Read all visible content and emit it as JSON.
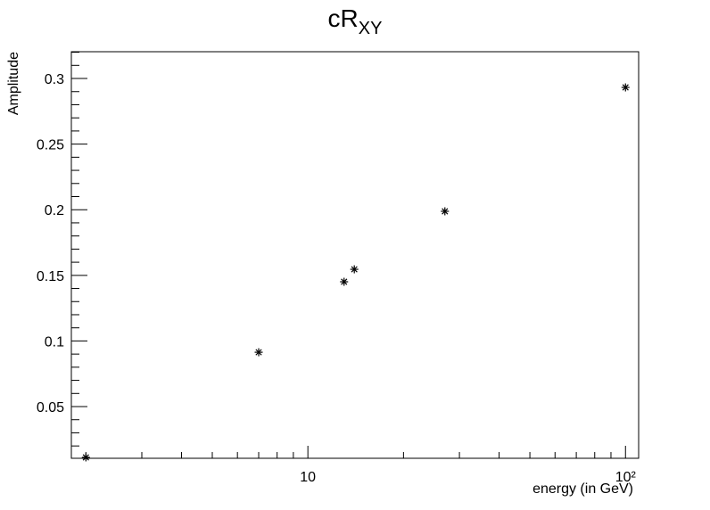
{
  "chart_data": {
    "type": "scatter",
    "title": "cR",
    "title_subscript": "XY",
    "x_label": "energy (in GeV)",
    "y_label": "Amplitude",
    "x": [
      2,
      7,
      13,
      14,
      27,
      100
    ],
    "values": [
      0.0113,
      0.0914,
      0.1451,
      0.1546,
      0.1988,
      0.2932
    ],
    "color": "#000000",
    "marker": "asterisk",
    "xscale": "log",
    "xlim": [
      1.8,
      110
    ],
    "ylim": [
      0.0106,
      0.3204
    ],
    "xticks": [
      10,
      {
        "value": 100,
        "label": "10²"
      }
    ],
    "xminor_ticks": [
      2,
      3,
      4,
      5,
      6,
      7,
      8,
      9,
      20,
      30,
      40,
      50,
      60,
      70,
      80,
      90
    ],
    "yticks": [
      0.05,
      0.1,
      0.15,
      0.2,
      0.25,
      0.3
    ],
    "yminor_ticks": [
      0.02,
      0.03,
      0.04,
      0.06,
      0.07,
      0.08,
      0.09,
      0.11,
      0.12,
      0.13,
      0.14,
      0.16,
      0.17,
      0.18,
      0.19,
      0.21,
      0.22,
      0.23,
      0.24,
      0.26,
      0.27,
      0.28,
      0.29,
      0.31,
      0.32
    ]
  }
}
